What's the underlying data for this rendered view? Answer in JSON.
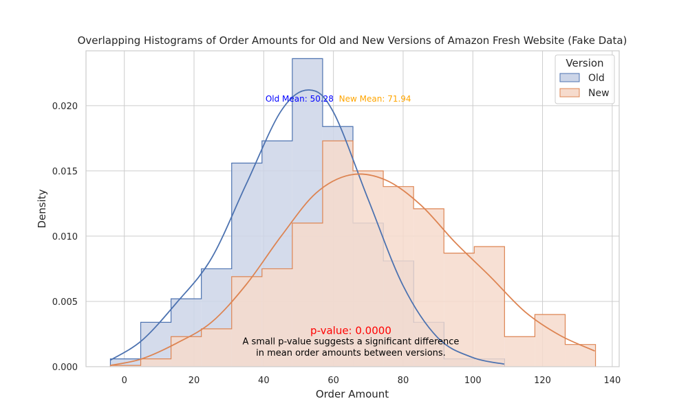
{
  "chart_data": {
    "type": "histogram",
    "title": "Overlapping Histograms of Order Amounts for Old and New Versions of Amazon Fresh Website (Fake Data)",
    "xlabel": "Order Amount",
    "ylabel": "Density",
    "xlim": [
      -11,
      142
    ],
    "ylim": [
      0,
      0.0242
    ],
    "xticks": [
      0,
      20,
      40,
      60,
      80,
      100,
      120,
      140
    ],
    "yticks": [
      0.0,
      0.005,
      0.01,
      0.015,
      0.02
    ],
    "xtick_labels": [
      "0",
      "20",
      "40",
      "60",
      "80",
      "100",
      "120",
      "140"
    ],
    "ytick_labels": [
      "0.000",
      "0.005",
      "0.010",
      "0.015",
      "0.020"
    ],
    "grid": true,
    "legend": {
      "title": "Version",
      "placement": "top-right",
      "entries": [
        "Old",
        "New"
      ]
    },
    "series": [
      {
        "name": "Old",
        "color": "#4c72b0",
        "fill": "#ccd5e8",
        "bin_edges": [
          -4,
          4.7,
          13.4,
          22.1,
          30.8,
          39.5,
          48.2,
          56.9,
          65.6,
          74.3,
          83.0,
          91.7,
          100.4,
          109.1
        ],
        "densities": [
          0.0006,
          0.0034,
          0.0052,
          0.0075,
          0.0156,
          0.0173,
          0.0236,
          0.0184,
          0.011,
          0.0081,
          0.0034,
          0.0006,
          0.0006
        ],
        "kde": [
          [
            -4,
            0.0005
          ],
          [
            5,
            0.002
          ],
          [
            15,
            0.0049
          ],
          [
            25,
            0.0083
          ],
          [
            35,
            0.014
          ],
          [
            45,
            0.0196
          ],
          [
            53,
            0.0212
          ],
          [
            60,
            0.0195
          ],
          [
            70,
            0.0128
          ],
          [
            80,
            0.0062
          ],
          [
            90,
            0.0022
          ],
          [
            100,
            0.0007
          ],
          [
            109,
            0.0002
          ]
        ]
      },
      {
        "name": "New",
        "color": "#dd8452",
        "fill": "#f6dbcd",
        "bin_edges": [
          -4,
          4.7,
          13.4,
          22.1,
          30.8,
          39.5,
          48.2,
          56.9,
          65.6,
          74.3,
          83.0,
          91.7,
          100.4,
          109.1,
          117.8,
          126.5,
          135.2
        ],
        "densities": [
          0.0001,
          0.0006,
          0.0023,
          0.0029,
          0.0069,
          0.0075,
          0.011,
          0.0173,
          0.015,
          0.0138,
          0.0121,
          0.0087,
          0.0092,
          0.0023,
          0.004,
          0.0017
        ],
        "kde": [
          [
            -4,
            0.0001
          ],
          [
            5,
            0.0006
          ],
          [
            15,
            0.0018
          ],
          [
            25,
            0.0034
          ],
          [
            35,
            0.0063
          ],
          [
            45,
            0.01
          ],
          [
            55,
            0.0133
          ],
          [
            65,
            0.0147
          ],
          [
            75,
            0.0143
          ],
          [
            85,
            0.0124
          ],
          [
            95,
            0.0095
          ],
          [
            105,
            0.0069
          ],
          [
            115,
            0.0042
          ],
          [
            125,
            0.0024
          ],
          [
            135,
            0.0012
          ]
        ]
      }
    ],
    "annotations": {
      "old_mean": {
        "text": "Old Mean: 50.28",
        "color": "#0000ff",
        "x": 50.28,
        "y": 0.0203
      },
      "new_mean": {
        "text": "New Mean: 71.94",
        "color": "#ffa500",
        "x": 71.94,
        "y": 0.0203
      },
      "pvalue": {
        "text": "p-value: 0.0000",
        "color": "#ff0000",
        "x": 65,
        "y": 0.0025
      },
      "note_line1": {
        "text": "A small p-value suggests a significant difference",
        "x": 65,
        "y": 0.0017
      },
      "note_line2": {
        "text": "in mean order amounts between versions.",
        "x": 65,
        "y": 0.00085
      }
    }
  }
}
